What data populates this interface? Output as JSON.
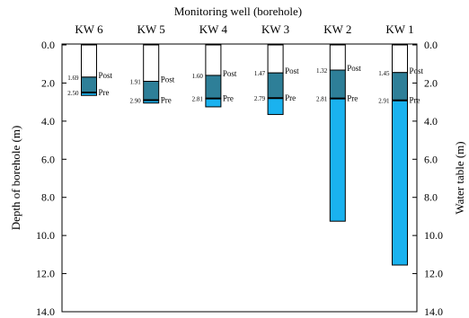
{
  "chart_data": {
    "type": "bar",
    "title": "Monitoring well (borehole)",
    "ylabel_left": "Depth of borehole (m)",
    "ylabel_right": "Water table (m)",
    "ylim": [
      0,
      14
    ],
    "y_ticks": [
      "0.0",
      "2.0",
      "4.0",
      "6.0",
      "8.0",
      "10.0",
      "12.0",
      "14.0"
    ],
    "post_label": "Post",
    "pre_label": "Pre",
    "colors": {
      "casing": "#ffffff",
      "water_post": "#2e7f98",
      "water_pre": "#1ab2ef",
      "outline": "#000000"
    },
    "wells": [
      {
        "name": "KW 6",
        "post": 1.69,
        "post_label": "1.69",
        "pre": 2.5,
        "pre_label": "2.50",
        "depth": 2.65
      },
      {
        "name": "KW 5",
        "post": 1.91,
        "post_label": "1.91",
        "pre": 2.9,
        "pre_label": "2.90",
        "depth": 3.05
      },
      {
        "name": "KW 4",
        "post": 1.6,
        "post_label": "1.60",
        "pre": 2.81,
        "pre_label": "2.81",
        "depth": 3.25
      },
      {
        "name": "KW 3",
        "post": 1.47,
        "post_label": "1.47",
        "pre": 2.79,
        "pre_label": "2.79",
        "depth": 3.65
      },
      {
        "name": "KW 2",
        "post": 1.32,
        "post_label": "1.32",
        "pre": 2.81,
        "pre_label": "2.81",
        "depth": 9.25
      },
      {
        "name": "KW 1",
        "post": 1.45,
        "post_label": "1.45",
        "pre": 2.91,
        "pre_label": "2.91",
        "depth": 11.55
      }
    ]
  }
}
